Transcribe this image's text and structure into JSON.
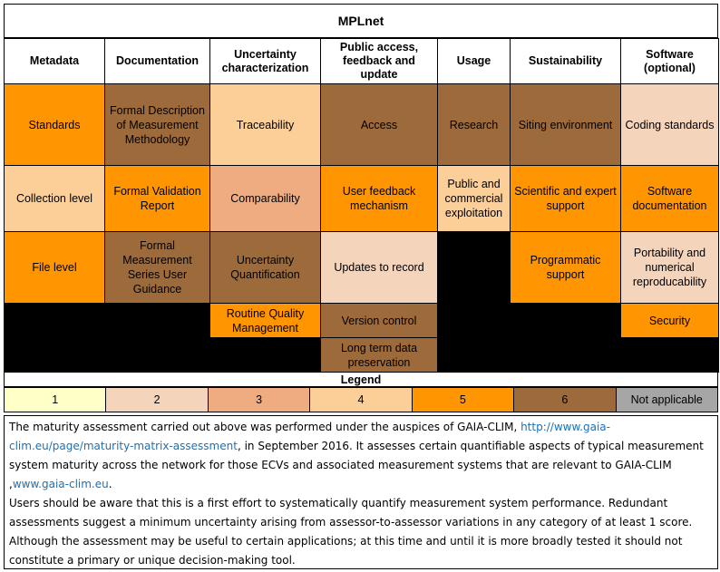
{
  "title": "MPLnet",
  "colors": {
    "1": "#ffffc8",
    "2": "#f5d4bc",
    "3": "#eeac80",
    "4": "#fccf98",
    "5": "#ff9500",
    "6": "#9c6a3b",
    "na": "#a6a6a6",
    "black": "#000000"
  },
  "columns": [
    "Metadata",
    "Documentation",
    "Uncertainty characterization",
    "Public access, feedback and update",
    "Usage",
    "Sustainability",
    "Software (optional)"
  ],
  "rows": [
    [
      {
        "text": "Standards",
        "level": "5"
      },
      {
        "text": "Formal Description of Measurement Methodology",
        "level": "6"
      },
      {
        "text": "Traceability",
        "level": "4"
      },
      {
        "text": "Access",
        "level": "6"
      },
      {
        "text": "Research",
        "level": "6"
      },
      {
        "text": "Siting environment",
        "level": "6"
      },
      {
        "text": "Coding standards",
        "level": "2"
      }
    ],
    [
      {
        "text": "Collection level",
        "level": "4"
      },
      {
        "text": "Formal Validation Report",
        "level": "5"
      },
      {
        "text": "Comparability",
        "level": "3"
      },
      {
        "text": "User feedback mechanism",
        "level": "5"
      },
      {
        "text": "Public and commercial exploitation",
        "level": "4"
      },
      {
        "text": "Scientific and expert support",
        "level": "5"
      },
      {
        "text": "Software documentation",
        "level": "5"
      }
    ],
    [
      {
        "text": "File level",
        "level": "5"
      },
      {
        "text": "Formal Measurement Series User Guidance",
        "level": "6"
      },
      {
        "text": "Uncertainty Quantification",
        "level": "6"
      },
      {
        "text": "Updates to record",
        "level": "2"
      },
      {
        "text": "",
        "level": "black"
      },
      {
        "text": "Programmatic support",
        "level": "5"
      },
      {
        "text": "Portability and numerical reproducability",
        "level": "2"
      }
    ],
    [
      {
        "text": "",
        "level": "black"
      },
      {
        "text": "",
        "level": "black"
      },
      {
        "text": "Routine Quality Management",
        "level": "5"
      },
      {
        "text": "Version control",
        "level": "6"
      },
      {
        "text": "",
        "level": "black"
      },
      {
        "text": "",
        "level": "black"
      },
      {
        "text": "Security",
        "level": "5"
      }
    ],
    [
      {
        "text": "",
        "level": "black"
      },
      {
        "text": "",
        "level": "black"
      },
      {
        "text": "",
        "level": "black"
      },
      {
        "text": "Long term data preservation",
        "level": "6"
      },
      {
        "text": "",
        "level": "black"
      },
      {
        "text": "",
        "level": "black"
      },
      {
        "text": "",
        "level": "black"
      }
    ]
  ],
  "legend": {
    "title": "Legend",
    "items": [
      {
        "label": "1",
        "level": "1"
      },
      {
        "label": "2",
        "level": "2"
      },
      {
        "label": "3",
        "level": "3"
      },
      {
        "label": "4",
        "level": "4"
      },
      {
        "label": "5",
        "level": "5"
      },
      {
        "label": "6",
        "level": "6"
      },
      {
        "label": "Not applicable",
        "level": "na"
      }
    ]
  },
  "note": {
    "part1": "The  maturity assessment carried out above was performed under the auspices of GAIA-CLIM,  ",
    "link1": "http://www.gaia-clim.eu/page/maturity-matrix-assessment",
    "part2": ", in September 2016. It assesses certain quantifiable aspects of typical measurement system maturity across the network for those ECVs and associated measurement systems that are relevant to GAIA-CLIM ,",
    "link2": "www.gaia-clim.eu",
    "part3": ".",
    "para2": "Users should be aware that this is a first effort to systematically quantify measurement system performance. Redundant assessments suggest a minimum uncertainty arising from assessor-to-assessor variations in any category of at least 1 score. Although the assessment may be useful to certain applications; at this time and until it is more broadly tested it should not constitute a primary or unique decision-making tool."
  }
}
